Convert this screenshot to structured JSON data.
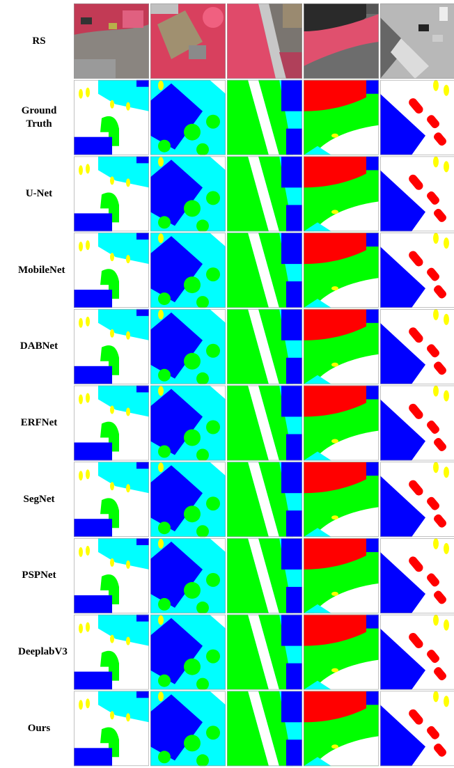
{
  "rows": [
    "RS",
    "Ground Truth",
    "U-Net",
    "MobileNet",
    "DABNet",
    "ERFNet",
    "SegNet",
    "PSPNet",
    "DeeplabV3",
    "Ours"
  ]
}
